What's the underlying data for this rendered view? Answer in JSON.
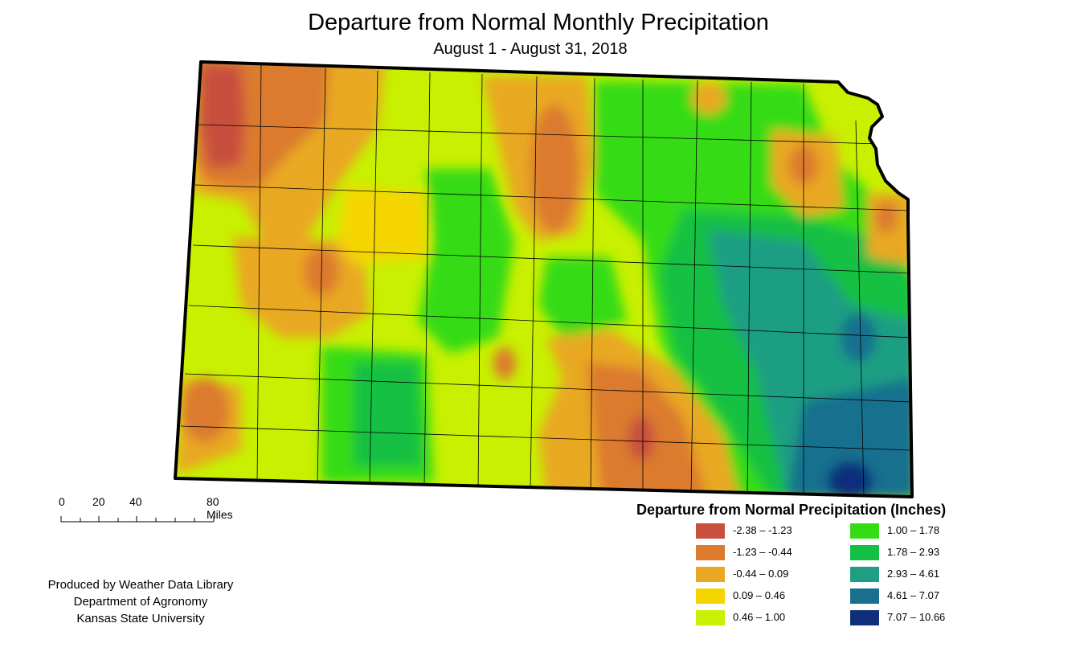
{
  "header": {
    "title": "Departure from Normal Monthly Precipitation",
    "subtitle": "August 1 - August 31, 2018"
  },
  "map": {
    "region": "Kansas",
    "layers": [
      "county boundaries",
      "precipitation departure contours"
    ]
  },
  "scale_bar": {
    "labels": [
      "0",
      "20",
      "40",
      "80 Miles"
    ]
  },
  "legend": {
    "title": "Departure from Normal Precipitation (Inches)",
    "classes": [
      {
        "range": "-2.38 – -1.23",
        "color": "#c8503c"
      },
      {
        "range": "-1.23 – -0.44",
        "color": "#dc7a2d"
      },
      {
        "range": "-0.44 – 0.09",
        "color": "#e9a824"
      },
      {
        "range": "0.09 – 0.46",
        "color": "#f5d500"
      },
      {
        "range": "0.46 – 1.00",
        "color": "#c8f000"
      },
      {
        "range": "1.00 – 1.78",
        "color": "#34dc14"
      },
      {
        "range": "1.78 – 2.93",
        "color": "#14c043"
      },
      {
        "range": "2.93 – 4.61",
        "color": "#1f9e83"
      },
      {
        "range": "4.61 – 7.07",
        "color": "#18708e"
      },
      {
        "range": "7.07 – 10.66",
        "color": "#0f2f7c"
      }
    ]
  },
  "credits": {
    "line1": "Produced by Weather Data Library",
    "line2": "Department of Agronomy",
    "line3": "Kansas State University"
  }
}
